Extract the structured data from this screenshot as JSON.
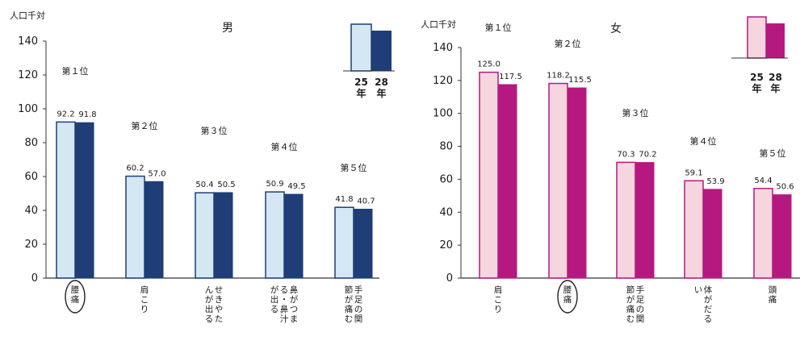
{
  "chart_data": [
    {
      "type": "bar",
      "title": "男",
      "ylabel": "人口千対",
      "ylim": [
        0,
        140
      ],
      "yticks": [
        "0",
        "20",
        "40",
        "60",
        "80",
        "100",
        "120",
        "140"
      ],
      "categories": [
        {
          "label": "腰痛",
          "highlight": true
        },
        {
          "label": "肩こり",
          "highlight": false
        },
        {
          "label": "せきやたんが出る",
          "highlight": false
        },
        {
          "label": "鼻がつまる・鼻汁が出る",
          "highlight": false
        },
        {
          "label": "手足の関節が痛む",
          "highlight": false
        }
      ],
      "ranks": [
        "第１位",
        "第２位",
        "第３位",
        "第４位",
        "第５位"
      ],
      "series": [
        {
          "name": "25年",
          "values": [
            92.2,
            60.2,
            50.4,
            50.9,
            41.8
          ],
          "labels": [
            "92.2",
            "60.2",
            "50.4",
            "50.9",
            "41.8"
          ]
        },
        {
          "name": "28年",
          "values": [
            91.8,
            57.0,
            50.5,
            49.5,
            40.7
          ],
          "labels": [
            "91.8",
            "57.0",
            "50.5",
            "49.5",
            "40.7"
          ]
        }
      ],
      "colors": {
        "s1": "#d4e8f4",
        "s2": "#1f3d77"
      },
      "legend": {
        "position": "top-right",
        "labels": [
          "25年",
          "28年"
        ]
      }
    },
    {
      "type": "bar",
      "title": "女",
      "ylabel": "人口千対",
      "ylim": [
        0,
        140
      ],
      "yticks": [
        "0",
        "20",
        "40",
        "60",
        "80",
        "100",
        "120",
        "140"
      ],
      "categories": [
        {
          "label": "肩こり",
          "highlight": false
        },
        {
          "label": "腰痛",
          "highlight": true
        },
        {
          "label": "手足の関節が痛む",
          "highlight": false
        },
        {
          "label": "体がだるい",
          "highlight": false
        },
        {
          "label": "頭痛",
          "highlight": false
        }
      ],
      "ranks": [
        "第１位",
        "第２位",
        "第３位",
        "第４位",
        "第５位"
      ],
      "series": [
        {
          "name": "25年",
          "values": [
            125.0,
            118.2,
            70.3,
            59.1,
            54.4
          ],
          "labels": [
            "125.0",
            "118.2",
            "70.3",
            "59.1",
            "54.4"
          ]
        },
        {
          "name": "28年",
          "values": [
            117.5,
            115.5,
            70.2,
            53.9,
            50.6
          ],
          "labels": [
            "117.5",
            "115.5",
            "70.2",
            "53.9",
            "50.6"
          ]
        }
      ],
      "colors": {
        "s1": "#f6d6de",
        "s2": "#b5197f"
      },
      "legend": {
        "position": "top-right",
        "labels": [
          "25年",
          "28年"
        ]
      }
    }
  ]
}
